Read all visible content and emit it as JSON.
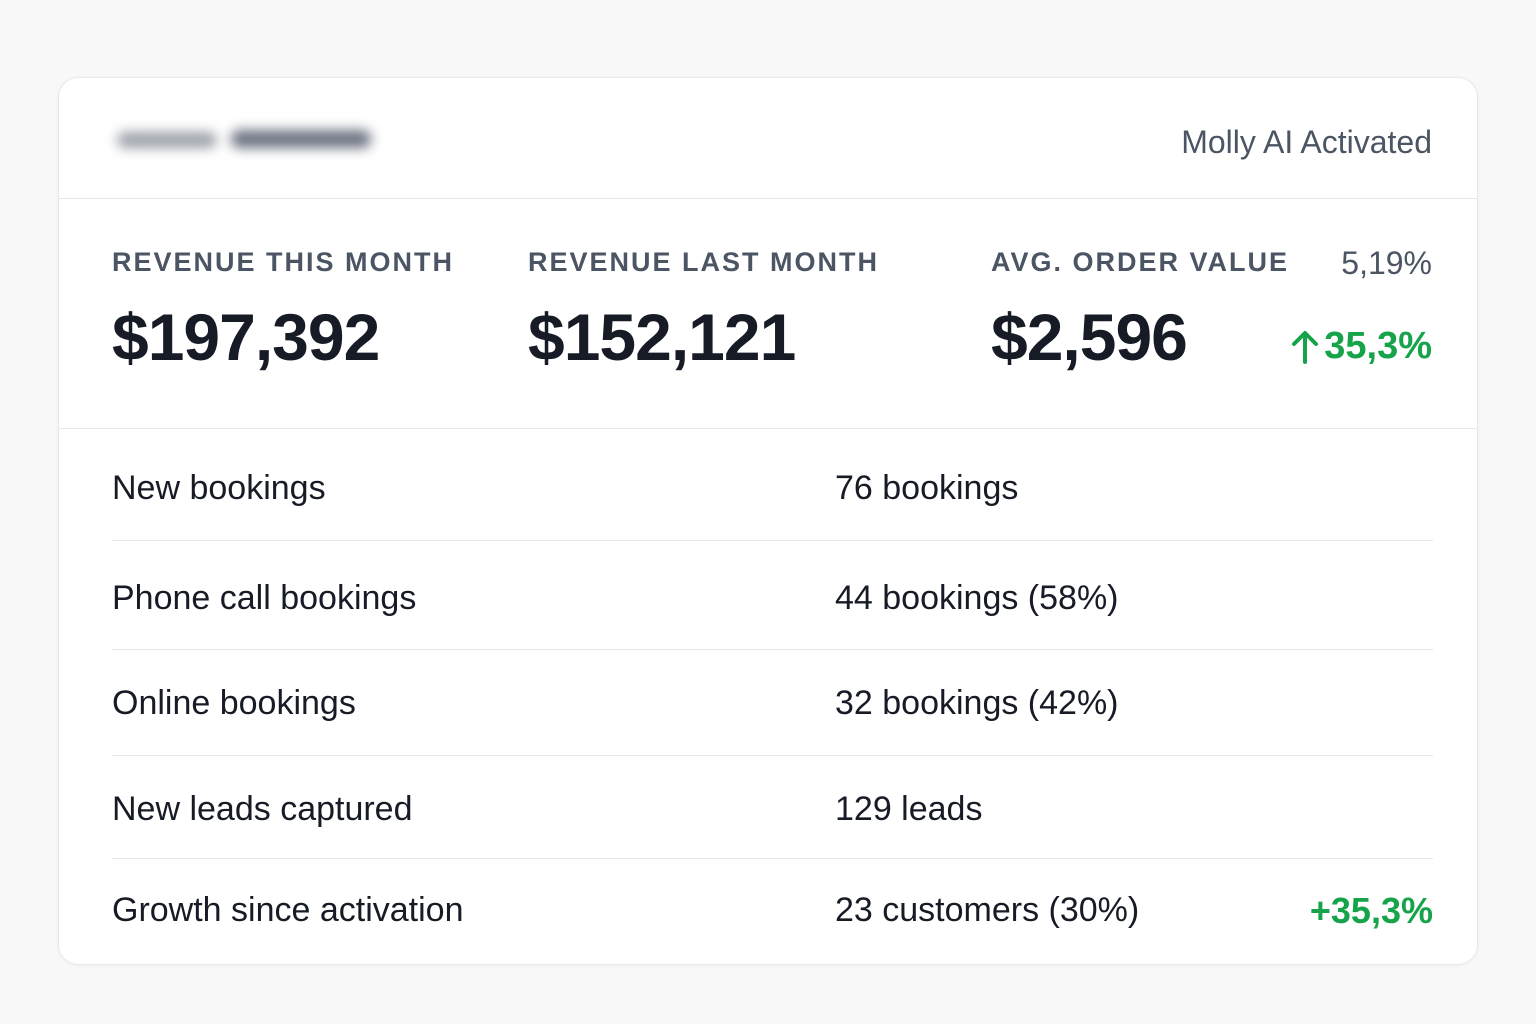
{
  "header": {
    "status_text": "Molly AI Activated"
  },
  "metrics": [
    {
      "label": "REVENUE THIS MONTH",
      "value": "$197,392"
    },
    {
      "label": "REVENUE LAST MONTH",
      "value": "$152,121"
    },
    {
      "label": "AVG. ORDER VALUE",
      "value": "$2,596"
    }
  ],
  "side": {
    "percent": "5,19%",
    "change": "35,3%",
    "change_icon": "arrow-up-icon",
    "change_color": "#16a34a"
  },
  "rows": [
    {
      "label": "New bookings",
      "value": "76 bookings",
      "extra": ""
    },
    {
      "label": "Phone call bookings",
      "value": "44 bookings (58%)",
      "extra": ""
    },
    {
      "label": "Online bookings",
      "value": "32 bookings (42%)",
      "extra": ""
    },
    {
      "label": "New leads captured",
      "value": "129 leads",
      "extra": ""
    },
    {
      "label": "Growth since activation",
      "value": "23 customers (30%)",
      "extra": "+35,3%"
    }
  ]
}
